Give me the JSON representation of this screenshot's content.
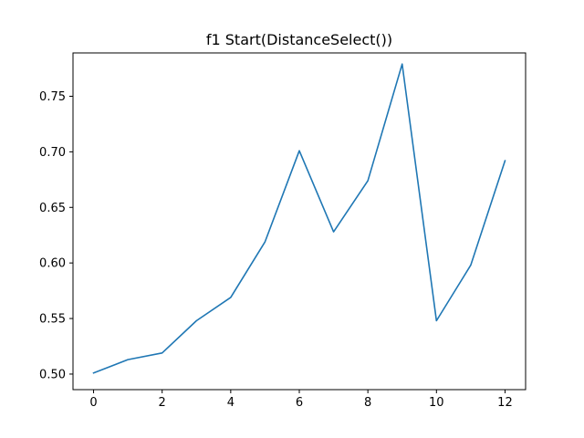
{
  "chart_data": {
    "type": "line",
    "title": "f1 Start(DistanceSelect())",
    "xlabel": "",
    "ylabel": "",
    "xlim": [
      -0.6,
      12.6
    ],
    "ylim": [
      0.486,
      0.789
    ],
    "xticks": [
      0,
      2,
      4,
      6,
      8,
      10,
      12
    ],
    "yticks": [
      0.5,
      0.55,
      0.6,
      0.65,
      0.7,
      0.75
    ],
    "ytick_labels": [
      "0.50",
      "0.55",
      "0.60",
      "0.65",
      "0.70",
      "0.75"
    ],
    "grid": false,
    "series": [
      {
        "color": "#1f77b4",
        "x": [
          0,
          1,
          2,
          3,
          4,
          5,
          6,
          7,
          8,
          9,
          10,
          11,
          12
        ],
        "y": [
          0.501,
          0.513,
          0.519,
          0.548,
          0.569,
          0.619,
          0.701,
          0.628,
          0.674,
          0.779,
          0.548,
          0.598,
          0.692
        ]
      }
    ]
  }
}
